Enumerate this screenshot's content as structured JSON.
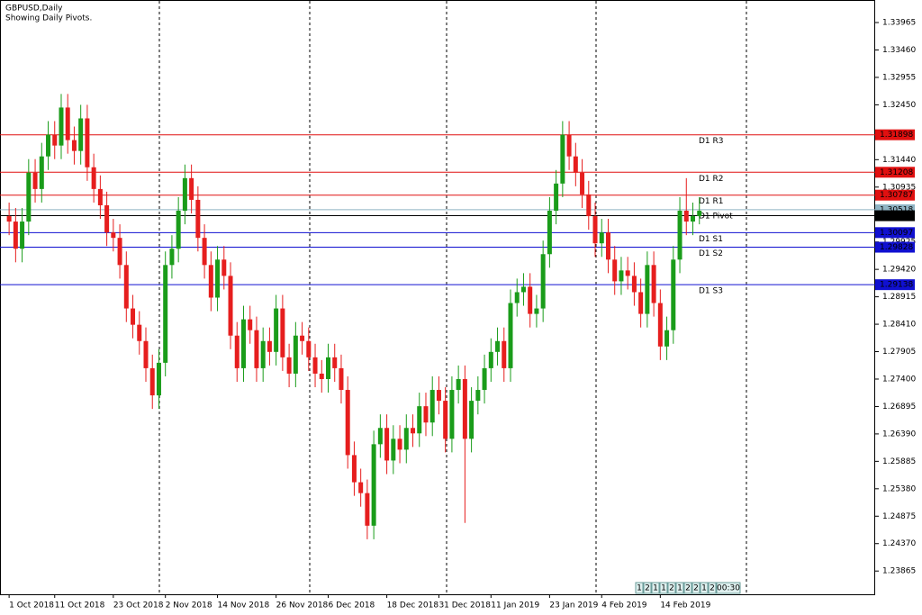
{
  "chart_data": {
    "type": "candlestick",
    "title": "GBPUSD,Daily",
    "subtitle": "Showing Daily Pivots.",
    "open": [
      1.304,
      1.303,
      1.298,
      1.303,
      1.312,
      1.309,
      1.315,
      1.319,
      1.317,
      1.324,
      1.318,
      1.316,
      1.322,
      1.313,
      1.309,
      1.306,
      1.301,
      1.3,
      1.295,
      1.287,
      1.284,
      1.281,
      1.276,
      1.271,
      1.277,
      1.295,
      1.298,
      1.305,
      1.311,
      1.307,
      1.3,
      1.295,
      1.289,
      1.296,
      1.293,
      1.282,
      1.276,
      1.285,
      1.283,
      1.276,
      1.281,
      1.279,
      1.287,
      1.278,
      1.275,
      1.282,
      1.281,
      1.278,
      1.275,
      1.274,
      1.278,
      1.276,
      1.272,
      1.26,
      1.255,
      1.253,
      1.247,
      1.262,
      1.265,
      1.259,
      1.263,
      1.261,
      1.265,
      1.264,
      1.269,
      1.266,
      1.272,
      1.27,
      1.263,
      1.272,
      1.274,
      1.263,
      1.27,
      1.272,
      1.276,
      1.279,
      1.281,
      1.276,
      1.288,
      1.29,
      1.291,
      1.286,
      1.287,
      1.297,
      1.305,
      1.31,
      1.319,
      1.315,
      1.312,
      1.308,
      1.304,
      1.299,
      1.301,
      1.296,
      1.292,
      1.294,
      1.293,
      1.29,
      1.286,
      1.295,
      1.288,
      1.28,
      1.283,
      1.296,
      1.305,
      1.303,
      1.304
    ],
    "high": [
      1.3065,
      1.3055,
      1.3055,
      1.3145,
      1.3145,
      1.3175,
      1.3215,
      1.3215,
      1.3265,
      1.3265,
      1.3205,
      1.3245,
      1.3245,
      1.3155,
      1.3115,
      1.3085,
      1.3035,
      1.3025,
      1.2975,
      1.2895,
      1.2865,
      1.2835,
      1.2785,
      1.2795,
      1.2975,
      1.3005,
      1.3075,
      1.3135,
      1.3135,
      1.3095,
      1.3025,
      1.2975,
      1.2985,
      1.2985,
      1.2955,
      1.2845,
      1.2875,
      1.2875,
      1.2855,
      1.2835,
      1.2835,
      1.2895,
      1.2895,
      1.2805,
      1.2845,
      1.2845,
      1.2835,
      1.2805,
      1.2775,
      1.2805,
      1.2805,
      1.2785,
      1.2745,
      1.2625,
      1.2575,
      1.2555,
      1.2645,
      1.2675,
      1.2675,
      1.2655,
      1.2655,
      1.2675,
      1.2675,
      1.2715,
      1.2715,
      1.2745,
      1.2745,
      1.2725,
      1.2745,
      1.2765,
      1.2765,
      1.2725,
      1.2745,
      1.2785,
      1.2815,
      1.2835,
      1.2835,
      1.2905,
      1.2925,
      1.2935,
      1.2935,
      1.2895,
      1.2995,
      1.3075,
      1.3125,
      1.3215,
      1.3215,
      1.3175,
      1.3145,
      1.3105,
      1.3065,
      1.3035,
      1.3035,
      1.2985,
      1.2965,
      1.2965,
      1.2955,
      1.2925,
      1.2975,
      1.2975,
      1.2905,
      1.2855,
      1.2985,
      1.3075,
      1.311,
      1.3065,
      1.3075
    ],
    "low": [
      1.3005,
      1.2955,
      1.2955,
      1.3005,
      1.3065,
      1.3065,
      1.3125,
      1.3145,
      1.3145,
      1.3155,
      1.3135,
      1.3135,
      1.3105,
      1.3065,
      1.3035,
      1.2985,
      1.2975,
      1.2925,
      1.2845,
      1.2815,
      1.2785,
      1.2735,
      1.2685,
      1.2685,
      1.2745,
      1.2925,
      1.2955,
      1.3025,
      1.3045,
      1.2975,
      1.2925,
      1.2865,
      1.2865,
      1.2905,
      1.2795,
      1.2735,
      1.2735,
      1.2805,
      1.2735,
      1.2735,
      1.2765,
      1.2765,
      1.2755,
      1.2725,
      1.2725,
      1.2785,
      1.2755,
      1.2725,
      1.2715,
      1.2715,
      1.2735,
      1.2695,
      1.2575,
      1.2525,
      1.2505,
      1.2445,
      1.2445,
      1.2595,
      1.2565,
      1.2565,
      1.2585,
      1.2585,
      1.2615,
      1.2615,
      1.2635,
      1.2635,
      1.2675,
      1.2605,
      1.2605,
      1.2695,
      1.2475,
      1.2605,
      1.2675,
      1.2695,
      1.2735,
      1.2765,
      1.2735,
      1.2735,
      1.2855,
      1.2875,
      1.2835,
      1.2835,
      1.2845,
      1.2945,
      1.3025,
      1.3075,
      1.3125,
      1.3095,
      1.3055,
      1.3015,
      1.2965,
      1.2965,
      1.2935,
      1.2895,
      1.2895,
      1.2905,
      1.2875,
      1.2835,
      1.2835,
      1.2855,
      1.2775,
      1.2775,
      1.2805,
      1.2935,
      1.3005,
      1.3005,
      1.3025
    ],
    "close": [
      1.303,
      1.298,
      1.303,
      1.312,
      1.309,
      1.315,
      1.319,
      1.317,
      1.324,
      1.318,
      1.316,
      1.322,
      1.313,
      1.309,
      1.306,
      1.301,
      1.3,
      1.295,
      1.287,
      1.284,
      1.281,
      1.276,
      1.271,
      1.277,
      1.295,
      1.298,
      1.305,
      1.311,
      1.307,
      1.3,
      1.295,
      1.289,
      1.296,
      1.293,
      1.282,
      1.276,
      1.285,
      1.283,
      1.276,
      1.281,
      1.279,
      1.287,
      1.278,
      1.275,
      1.282,
      1.281,
      1.278,
      1.275,
      1.274,
      1.278,
      1.276,
      1.272,
      1.26,
      1.255,
      1.253,
      1.247,
      1.262,
      1.265,
      1.259,
      1.263,
      1.261,
      1.265,
      1.264,
      1.269,
      1.266,
      1.272,
      1.27,
      1.263,
      1.272,
      1.274,
      1.263,
      1.27,
      1.272,
      1.276,
      1.279,
      1.281,
      1.276,
      1.288,
      1.29,
      1.291,
      1.286,
      1.287,
      1.297,
      1.305,
      1.31,
      1.319,
      1.315,
      1.312,
      1.308,
      1.304,
      1.299,
      1.301,
      1.296,
      1.292,
      1.294,
      1.293,
      1.29,
      1.286,
      1.295,
      1.288,
      1.28,
      1.283,
      1.296,
      1.305,
      1.303,
      1.304,
      1.305
    ],
    "up_color": "#1a9c1a",
    "down_color": "#e61e1e",
    "xlim": [
      -1.4,
      133
    ],
    "xticks": [
      {
        "value": 0,
        "label": "1 Oct 2018"
      },
      {
        "value": 7,
        "label": "11 Oct 2018"
      },
      {
        "value": 16,
        "label": "23 Oct 2018"
      },
      {
        "value": 24,
        "label": "2 Nov 2018"
      },
      {
        "value": 32,
        "label": "14 Nov 2018"
      },
      {
        "value": 41,
        "label": "26 Nov 2018"
      },
      {
        "value": 49,
        "label": "6 Dec 2018"
      },
      {
        "value": 58,
        "label": "18 Dec 2018"
      },
      {
        "value": 66,
        "label": "31 Dec 2018"
      },
      {
        "value": 74,
        "label": "11 Jan 2019"
      },
      {
        "value": 83,
        "label": "23 Jan 2019"
      },
      {
        "value": 91,
        "label": "4 Feb 2019"
      },
      {
        "value": 100,
        "label": "14 Feb 2019"
      }
    ],
    "ylim": [
      1.23437,
      1.3438
    ],
    "yticks": [
      1.33965,
      {
        "value": 1.3346,
        "label": "1.33460"
      },
      1.32955,
      {
        "value": 1.3245,
        "label": "1.32450"
      },
      {
        "value": 1.3144,
        "label": "1.31440"
      },
      1.30935,
      1.29925,
      {
        "value": 1.2942,
        "label": "1.29420"
      },
      1.28915,
      {
        "value": 1.2841,
        "label": "1.28410"
      },
      1.27905,
      {
        "value": 1.274,
        "label": "1.27400"
      },
      1.26895,
      {
        "value": 1.2639,
        "label": "1.26390"
      },
      1.25885,
      {
        "value": 1.2538,
        "label": "1.25380"
      },
      1.24875,
      {
        "value": 1.2437,
        "label": "1.24370"
      },
      1.23865
    ],
    "pivots": [
      {
        "name": "D1 R3",
        "value": 1.31898,
        "color": "#e01010"
      },
      {
        "name": "D1 R2",
        "value": 1.31208,
        "color": "#e01010"
      },
      {
        "name": "D1 R1",
        "value": 1.30787,
        "color": "#e01010"
      },
      {
        "name": "D1 Pivot",
        "value": 1.30518,
        "color": "#8fb4c4"
      },
      {
        "name": "D1 S1",
        "value": 1.30097,
        "color": "#1010d0"
      },
      {
        "name": "D1 S2",
        "value": 1.29828,
        "color": "#1010d0"
      },
      {
        "name": "D1 S3",
        "value": 1.29138,
        "color": "#1010d0"
      }
    ],
    "current_price": 1.30408,
    "status_bar": [
      "1",
      "2",
      "1",
      "1",
      "2",
      "1",
      "2",
      "2",
      "1",
      "2",
      "00:30"
    ]
  }
}
